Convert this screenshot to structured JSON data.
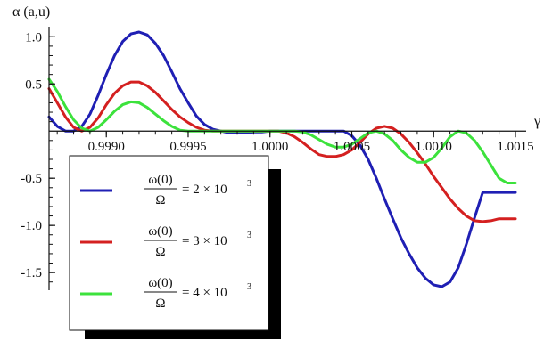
{
  "chart_data": {
    "type": "line",
    "title": "",
    "xlabel": "γ",
    "ylabel": "α (a,u)",
    "xlim": [
      0.99865,
      1.0015
    ],
    "ylim": [
      -1.65,
      1.05
    ],
    "x_ticks": [
      "0.9990",
      "0.9995",
      "1.0000",
      "1.0005",
      "1.0010",
      "1.0015"
    ],
    "x_tick_values": [
      0.999,
      0.9995,
      1.0,
      1.0005,
      1.001,
      1.0015
    ],
    "y_ticks": [
      "1.0",
      "0.5",
      "-0.5",
      "-1.0",
      "-1.5"
    ],
    "y_tick_values": [
      1.0,
      0.5,
      -0.5,
      -1.0,
      -1.5
    ],
    "legend_position": "bottom-left",
    "series": [
      {
        "label_num": "ω(0)",
        "label_den": "Ω",
        "label_value": "= 2 × 10",
        "label_exp": "3",
        "color": "#1f1fb4",
        "x": [
          0.99865,
          0.9987,
          0.99875,
          0.9988,
          0.99885,
          0.9989,
          0.99895,
          0.999,
          0.99905,
          0.9991,
          0.99915,
          0.9992,
          0.99925,
          0.9993,
          0.99935,
          0.9994,
          0.99945,
          0.9995,
          0.99955,
          0.9996,
          0.99965,
          0.9997,
          0.99975,
          0.9998,
          0.99985,
          0.9999,
          0.99995,
          1.0,
          1.00005,
          1.0001,
          1.00015,
          1.0002,
          1.00025,
          1.0003,
          1.00035,
          1.0004,
          1.00045,
          1.0005,
          1.00055,
          1.0006,
          1.00065,
          1.0007,
          1.00075,
          1.0008,
          1.00085,
          1.0009,
          1.00095,
          1.001,
          1.00105,
          1.0011,
          1.00115,
          1.0012,
          1.00125,
          1.0013,
          1.00135,
          1.0014,
          1.00145,
          1.0015
        ],
        "y": [
          0.15,
          0.05,
          0.0,
          0.0,
          0.05,
          0.18,
          0.38,
          0.6,
          0.8,
          0.95,
          1.03,
          1.05,
          1.02,
          0.93,
          0.8,
          0.63,
          0.45,
          0.3,
          0.16,
          0.07,
          0.02,
          0.0,
          -0.02,
          -0.02,
          -0.02,
          -0.01,
          -0.01,
          0.0,
          0.0,
          0.0,
          0.0,
          0.0,
          0.0,
          0.0,
          0.0,
          0.0,
          0.0,
          -0.05,
          -0.15,
          -0.3,
          -0.5,
          -0.72,
          -0.93,
          -1.13,
          -1.3,
          -1.45,
          -1.56,
          -1.63,
          -1.65,
          -1.6,
          -1.45,
          -1.2,
          -0.92,
          -0.65,
          -0.65,
          -0.65,
          -0.65,
          -0.65
        ]
      },
      {
        "label_num": "ω(0)",
        "label_den": "Ω",
        "label_value": "= 3 × 10",
        "label_exp": "3",
        "color": "#d42020",
        "x": [
          0.99865,
          0.9987,
          0.99875,
          0.9988,
          0.99885,
          0.9989,
          0.99895,
          0.999,
          0.99905,
          0.9991,
          0.99915,
          0.9992,
          0.99925,
          0.9993,
          0.99935,
          0.9994,
          0.99945,
          0.9995,
          0.99955,
          0.9996,
          0.99965,
          0.9997,
          0.99975,
          0.9998,
          0.99985,
          0.9999,
          0.99995,
          1.0,
          1.00005,
          1.0001,
          1.00015,
          1.0002,
          1.00025,
          1.0003,
          1.00035,
          1.0004,
          1.00045,
          1.0005,
          1.00055,
          1.0006,
          1.00065,
          1.0007,
          1.00075,
          1.0008,
          1.00085,
          1.0009,
          1.00095,
          1.001,
          1.00105,
          1.0011,
          1.00115,
          1.0012,
          1.00125,
          1.0013,
          1.00135,
          1.0014,
          1.00145,
          1.0015
        ],
        "y": [
          0.45,
          0.3,
          0.15,
          0.04,
          0.0,
          0.04,
          0.14,
          0.28,
          0.4,
          0.48,
          0.52,
          0.52,
          0.48,
          0.41,
          0.32,
          0.23,
          0.15,
          0.09,
          0.04,
          0.01,
          0.0,
          0.0,
          0.0,
          0.0,
          0.0,
          0.0,
          0.0,
          0.0,
          0.0,
          -0.02,
          -0.06,
          -0.12,
          -0.19,
          -0.25,
          -0.27,
          -0.27,
          -0.25,
          -0.2,
          -0.12,
          -0.03,
          0.03,
          0.05,
          0.03,
          -0.03,
          -0.12,
          -0.23,
          -0.35,
          -0.48,
          -0.6,
          -0.72,
          -0.82,
          -0.9,
          -0.95,
          -0.96,
          -0.95,
          -0.93,
          -0.93,
          -0.93
        ]
      },
      {
        "label_num": "ω(0)",
        "label_den": "Ω",
        "label_value": "= 4 × 10",
        "label_exp": "3",
        "color": "#3ce23c",
        "x": [
          0.99865,
          0.9987,
          0.99875,
          0.9988,
          0.99885,
          0.9989,
          0.99895,
          0.999,
          0.99905,
          0.9991,
          0.99915,
          0.9992,
          0.99925,
          0.9993,
          0.99935,
          0.9994,
          0.99945,
          0.9995,
          0.99955,
          0.9996,
          0.99965,
          0.9997,
          0.99975,
          0.9998,
          0.99985,
          0.9999,
          0.99995,
          1.0,
          1.00005,
          1.0001,
          1.00015,
          1.0002,
          1.00025,
          1.0003,
          1.00035,
          1.0004,
          1.00045,
          1.0005,
          1.00055,
          1.0006,
          1.00065,
          1.0007,
          1.00075,
          1.0008,
          1.00085,
          1.0009,
          1.00095,
          1.001,
          1.00105,
          1.0011,
          1.00115,
          1.0012,
          1.00125,
          1.0013,
          1.00135,
          1.0014,
          1.00145,
          1.0015
        ],
        "y": [
          0.55,
          0.42,
          0.26,
          0.12,
          0.03,
          0.0,
          0.04,
          0.12,
          0.21,
          0.28,
          0.31,
          0.3,
          0.25,
          0.18,
          0.11,
          0.05,
          0.01,
          0.0,
          0.0,
          0.0,
          0.0,
          0.0,
          0.0,
          0.0,
          0.0,
          0.0,
          0.0,
          0.0,
          0.0,
          0.0,
          0.0,
          -0.01,
          -0.04,
          -0.09,
          -0.14,
          -0.17,
          -0.17,
          -0.14,
          -0.08,
          -0.02,
          0.0,
          -0.03,
          -0.1,
          -0.2,
          -0.28,
          -0.33,
          -0.33,
          -0.28,
          -0.18,
          -0.06,
          0.0,
          -0.02,
          -0.1,
          -0.22,
          -0.36,
          -0.5,
          -0.55,
          -0.55
        ]
      }
    ]
  }
}
